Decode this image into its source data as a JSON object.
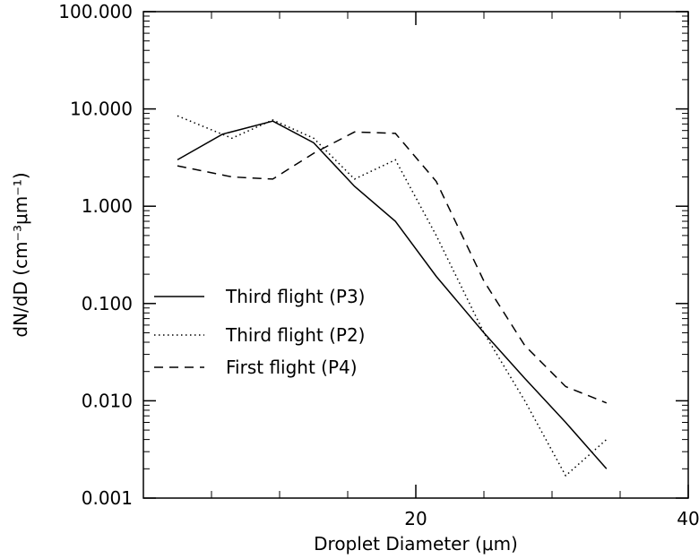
{
  "chart_data": {
    "type": "line",
    "xlabel": "Droplet Diameter (μm)",
    "ylabel": "dN/dD (cm⁻³μm⁻¹)",
    "xlim": [
      0,
      40
    ],
    "ylim": [
      0.001,
      100
    ],
    "yscale": "log",
    "x_ticks": [
      20,
      40
    ],
    "x_tick_labels": [
      "20",
      "40"
    ],
    "y_ticks": [
      0.001,
      0.01,
      0.1,
      1,
      10,
      100
    ],
    "y_tick_labels": [
      "0.001",
      "0.010",
      "0.100",
      "1.000",
      "10.000",
      "100.000"
    ],
    "grid": false,
    "legend_position": "center-left",
    "series": [
      {
        "name": "Third flight (P3)",
        "style": "solid",
        "x": [
          2.5,
          5.8,
          9.5,
          12.5,
          15.5,
          18.5,
          21.5,
          25,
          28,
          31,
          34
        ],
        "y": [
          3.0,
          5.5,
          7.5,
          4.5,
          1.6,
          0.7,
          0.19,
          0.05,
          0.017,
          0.006,
          0.002
        ]
      },
      {
        "name": "Third flight (P2)",
        "style": "dotted",
        "x": [
          2.5,
          6.5,
          9.5,
          12.5,
          15.5,
          18.5,
          21.5,
          25,
          28,
          31,
          34
        ],
        "y": [
          8.5,
          5.0,
          7.7,
          5.0,
          1.9,
          3.0,
          0.5,
          0.05,
          0.01,
          0.0017,
          0.004
        ]
      },
      {
        "name": "First flight (P4)",
        "style": "dashed",
        "x": [
          2.5,
          6.5,
          9.5,
          12.5,
          15.5,
          18.5,
          21.5,
          25,
          28,
          31,
          34
        ],
        "y": [
          2.6,
          2.0,
          1.9,
          3.5,
          5.8,
          5.6,
          1.8,
          0.17,
          0.037,
          0.014,
          0.0095
        ]
      }
    ]
  }
}
